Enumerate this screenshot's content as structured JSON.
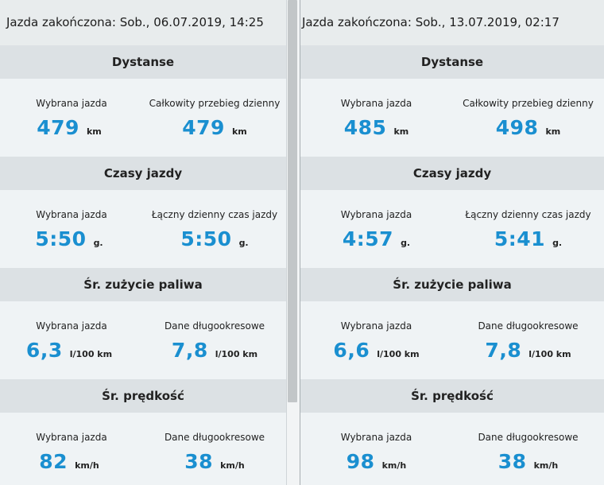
{
  "panels": [
    {
      "title": "Jazda zakończona: Sob., 06.07.2019, 14:25",
      "sections": [
        {
          "header": "Dystanse",
          "left": {
            "label": "Wybrana jazda",
            "value": "479",
            "unit": "km"
          },
          "right": {
            "label": "Całkowity przebieg dzienny",
            "value": "479",
            "unit": "km"
          }
        },
        {
          "header": "Czasy jazdy",
          "left": {
            "label": "Wybrana jazda",
            "value": "5:50",
            "unit": "g."
          },
          "right": {
            "label": "Łączny dzienny czas jazdy",
            "value": "5:50",
            "unit": "g."
          }
        },
        {
          "header": "Śr. zużycie paliwa",
          "left": {
            "label": "Wybrana jazda",
            "value": "6,3",
            "unit": "l/100 km"
          },
          "right": {
            "label": "Dane długookresowe",
            "value": "7,8",
            "unit": "l/100 km"
          }
        },
        {
          "header": "Śr. prędkość",
          "left": {
            "label": "Wybrana jazda",
            "value": "82",
            "unit": "km/h"
          },
          "right": {
            "label": "Dane długookresowe",
            "value": "38",
            "unit": "km/h"
          }
        }
      ]
    },
    {
      "title": "Jazda zakończona: Sob., 13.07.2019, 02:17",
      "sections": [
        {
          "header": "Dystanse",
          "left": {
            "label": "Wybrana jazda",
            "value": "485",
            "unit": "km"
          },
          "right": {
            "label": "Całkowity przebieg dzienny",
            "value": "498",
            "unit": "km"
          }
        },
        {
          "header": "Czasy jazdy",
          "left": {
            "label": "Wybrana jazda",
            "value": "4:57",
            "unit": "g."
          },
          "right": {
            "label": "Łączny dzienny czas jazdy",
            "value": "5:41",
            "unit": "g."
          }
        },
        {
          "header": "Śr. zużycie paliwa",
          "left": {
            "label": "Wybrana jazda",
            "value": "6,6",
            "unit": "l/100 km"
          },
          "right": {
            "label": "Dane długookresowe",
            "value": "7,8",
            "unit": "l/100 km"
          }
        },
        {
          "header": "Śr. prędkość",
          "left": {
            "label": "Wybrana jazda",
            "value": "98",
            "unit": "km/h"
          },
          "right": {
            "label": "Dane długookresowe",
            "value": "38",
            "unit": "km/h"
          }
        }
      ]
    }
  ],
  "colors": {
    "value_accent": "#1a8fd0",
    "section_header_bg": "#dce1e4",
    "panel_bg": "#eff3f5",
    "title_bar_bg": "#e8eced",
    "scrollbar_thumb": "#c2c6c8"
  }
}
